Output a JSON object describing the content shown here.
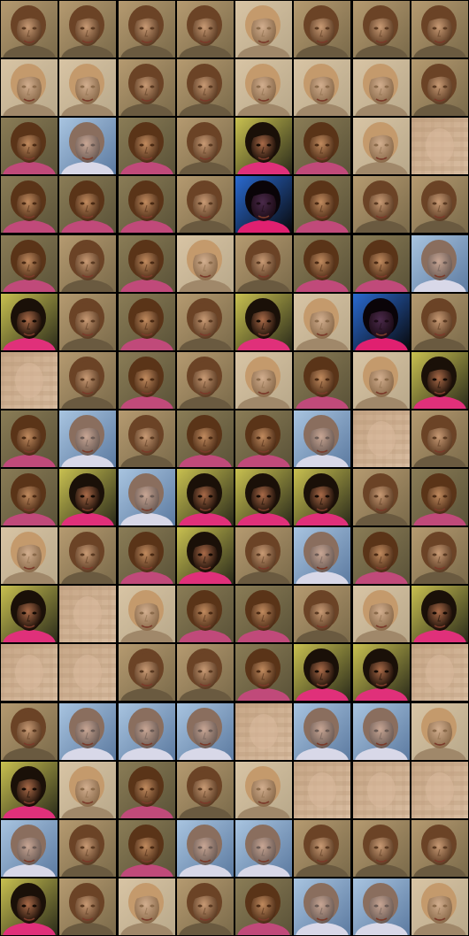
{
  "grid": {
    "rows": 16,
    "cols": 8,
    "styles": [
      "aaaabaaa",
      "bbaabbba",
      "cdcaecbf",
      "cccagcaa",
      "cacbaccd",
      "eacaebga",
      "facabcbe",
      "cdaccdfa",
      "cedeeeac",
      "baceadca",
      "efbccabe",
      "ffaaceef",
      "adddfddb",
      "ebcabfff",
      "dacddaaa",
      "eabacddb"
    ]
  },
  "palette": {
    "a": {
      "bg": "#7a6a4a",
      "bg2": "#b59a70",
      "skin": "#c89a74",
      "hair": "#6b4326",
      "shirt": "#6a5a40",
      "shade": "#5a3a22"
    },
    "b": {
      "bg": "#b8a88a",
      "bg2": "#d8c4a4",
      "skin": "#d2ae8e",
      "hair": "#c49a6c",
      "shirt": "#a0886a",
      "shade": "#8a6a4a"
    },
    "c": {
      "bg": "#5a5238",
      "bg2": "#8a7c56",
      "skin": "#c08a5e",
      "hair": "#5a3418",
      "shirt": "#c04a7a",
      "shade": "#4a2a14"
    },
    "d": {
      "bg": "#5c7aa0",
      "bg2": "#a8c4e0",
      "skin": "#c8a694",
      "hair": "#8a6e5e",
      "shirt": "#d8d8e8",
      "shade": "#6a5a54"
    },
    "e": {
      "bg": "#2a2a1a",
      "bg2": "#c8c050",
      "skin": "#a86a48",
      "hair": "#1a1008",
      "shirt": "#e0307a",
      "shade": "#140a04"
    },
    "f": {
      "bg": "#d8bca0",
      "bg2": "#c8a888",
      "skin": "#dcbca0",
      "hair": "#c09c7c",
      "shirt": "#d0b090",
      "shade": "#b08e70"
    },
    "g": {
      "bg": "#08080a",
      "bg2": "#2a6ad0",
      "skin": "#4a2a4a",
      "hair": "#0a0408",
      "shirt": "#e02070",
      "shade": "#1a0a14"
    }
  }
}
